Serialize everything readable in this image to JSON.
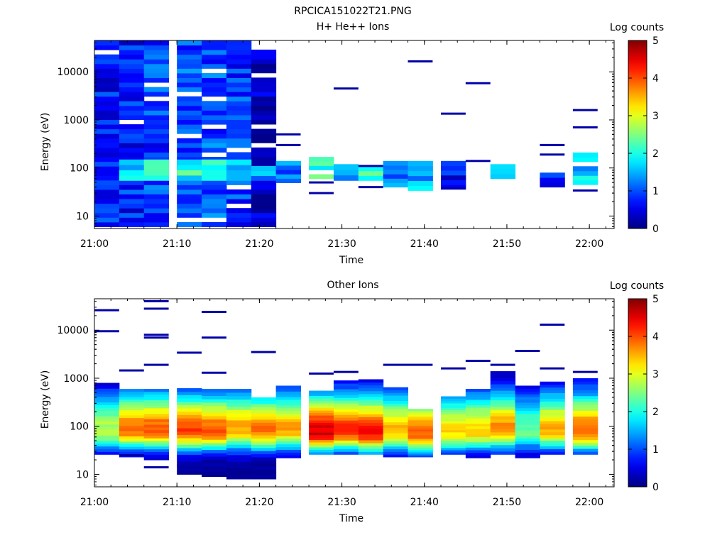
{
  "figure": {
    "title": "RPCICA151022T21.PNG"
  },
  "chart_data": [
    {
      "type": "heatmap",
      "title": "H+ He++ Ions",
      "xlabel": "Time",
      "ylabel": "Energy (eV)",
      "colorbar_label": "Log counts",
      "colorbar_ticks": [
        "0",
        "1",
        "2",
        "3",
        "4",
        "5"
      ],
      "colorbar_range": [
        0,
        5
      ],
      "x_ticks": [
        "21:00",
        "21:10",
        "21:20",
        "21:30",
        "21:40",
        "21:50",
        "22:00"
      ],
      "y_ticks": [
        "10",
        "100",
        "1000",
        "10000"
      ],
      "y_scale": "log",
      "x_range": [
        "21:00",
        "22:03"
      ],
      "y_range": [
        5.5,
        45000
      ],
      "time_bins": [
        "21:00",
        "21:03",
        "21:06",
        "21:10",
        "21:13",
        "21:16",
        "21:19",
        "21:22",
        "21:26",
        "21:29",
        "21:32",
        "21:35",
        "21:38",
        "21:42",
        "21:45",
        "21:48",
        "21:51",
        "21:54",
        "21:58"
      ],
      "cells": [
        {
          "t": 0,
          "e": [
            6,
            45000
          ],
          "v": 0.7,
          "note": "dense blue noise column"
        },
        {
          "t": 1,
          "e": [
            6,
            45000
          ],
          "v": 0.75
        },
        {
          "t": 2,
          "e": [
            6,
            45000
          ],
          "v": 0.9
        },
        {
          "t": 3,
          "e": [
            6,
            45000
          ],
          "v": 1.0
        },
        {
          "t": 4,
          "e": [
            6,
            45000
          ],
          "v": 1.0
        },
        {
          "t": 5,
          "e": [
            6,
            45000
          ],
          "v": 0.9
        },
        {
          "t": 6,
          "e": [
            6,
            29000
          ],
          "v": 0.3
        },
        {
          "t": 1,
          "e": [
            55,
            150
          ],
          "v": 1.7
        },
        {
          "t": 2,
          "e": [
            55,
            150
          ],
          "v": 1.9
        },
        {
          "t": 3,
          "e": [
            55,
            150
          ],
          "v": 2.0
        },
        {
          "t": 4,
          "e": [
            55,
            150
          ],
          "v": 2.1
        },
        {
          "t": 5,
          "e": [
            55,
            150
          ],
          "v": 1.6
        },
        {
          "t": 6,
          "e": [
            55,
            110
          ],
          "v": 1.4
        },
        {
          "t": 7,
          "e": [
            40,
            140
          ],
          "v": 1.1
        },
        {
          "t": 8,
          "e": [
            60,
            170
          ],
          "v": 2.1
        },
        {
          "t": 9,
          "e": [
            55,
            120
          ],
          "v": 1.4
        },
        {
          "t": 10,
          "e": [
            55,
            110
          ],
          "v": 2.0
        },
        {
          "t": 11,
          "e": [
            40,
            140
          ],
          "v": 1.2
        },
        {
          "t": 12,
          "e": [
            34,
            140
          ],
          "v": 1.5
        },
        {
          "t": 13,
          "e": [
            36,
            140
          ],
          "v": 0.7
        },
        {
          "t": 15,
          "e": [
            60,
            120
          ],
          "v": 1.8
        },
        {
          "t": 17,
          "e": [
            40,
            80
          ],
          "v": 0.8
        },
        {
          "t": 18,
          "e": [
            45,
            210
          ],
          "v": 1.6
        }
      ]
    },
    {
      "type": "heatmap",
      "title": "Other Ions",
      "xlabel": "Time",
      "ylabel": "Energy (eV)",
      "colorbar_label": "Log counts",
      "colorbar_ticks": [
        "0",
        "1",
        "2",
        "3",
        "4",
        "5"
      ],
      "colorbar_range": [
        0,
        5
      ],
      "x_ticks": [
        "21:00",
        "21:10",
        "21:20",
        "21:30",
        "21:40",
        "21:50",
        "22:00"
      ],
      "y_ticks": [
        "10",
        "100",
        "1000",
        "10000"
      ],
      "y_scale": "log",
      "x_range": [
        "21:00",
        "22:03"
      ],
      "y_range": [
        5.5,
        45000
      ],
      "time_bins": [
        "21:00",
        "21:03",
        "21:06",
        "21:10",
        "21:13",
        "21:16",
        "21:19",
        "21:22",
        "21:26",
        "21:29",
        "21:32",
        "21:35",
        "21:38",
        "21:42",
        "21:45",
        "21:48",
        "21:51",
        "21:54",
        "21:58"
      ],
      "peak_log_counts": [
        2.8,
        3.9,
        4.0,
        4.1,
        4.0,
        3.6,
        3.8,
        3.6,
        4.6,
        4.2,
        4.4,
        3.5,
        3.9,
        3.3,
        3.4,
        3.7,
        2.4,
        3.5,
        4.0
      ],
      "peak_energy_ev": [
        80,
        85,
        85,
        80,
        80,
        85,
        80,
        85,
        75,
        80,
        75,
        80,
        70,
        75,
        80,
        85,
        80,
        85,
        80
      ],
      "band_energy_ev": [
        [
          26,
          800
        ],
        [
          23,
          600
        ],
        [
          20,
          600
        ],
        [
          10,
          620
        ],
        [
          9,
          600
        ],
        [
          8,
          600
        ],
        [
          8,
          400
        ],
        [
          22,
          700
        ],
        [
          26,
          550
        ],
        [
          26,
          900
        ],
        [
          26,
          950
        ],
        [
          23,
          650
        ],
        [
          23,
          230
        ],
        [
          26,
          420
        ],
        [
          22,
          600
        ],
        [
          26,
          1400
        ],
        [
          22,
          700
        ],
        [
          26,
          850
        ],
        [
          26,
          1000
        ]
      ]
    }
  ]
}
